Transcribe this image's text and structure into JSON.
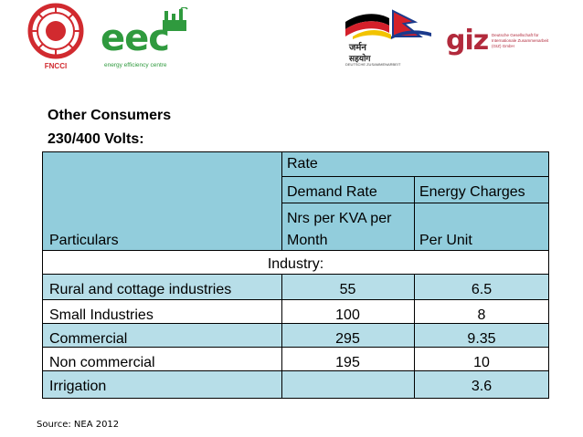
{
  "header": {
    "fncci_logo_label": "FNCCI",
    "eec_logo_text": "eec",
    "eec_logo_subtitle": "energy efficiency centre",
    "german_logo_line1": "जर्मन",
    "german_logo_line2": "सहयोग",
    "german_logo_line3": "DEUTSCHE ZUSAMMENARBEIT",
    "giz_logo_text": "giz",
    "giz_logo_small": "Deutsche Gesellschaft für Internationale Zusammenarbeit (GIZ) GmbH",
    "colors": {
      "eec_green": "#2f9a3e",
      "fncci_red": "#d12a2f",
      "giz_red": "#b22a3c"
    }
  },
  "titles": {
    "line1": "Other Consumers",
    "line2": "230/400 Volts:"
  },
  "table": {
    "header": {
      "particulars": "Particulars",
      "rate": "Rate",
      "demand_rate": "Demand Rate",
      "energy_charges": "Energy Charges",
      "demand_unit_line1": "Nrs  per  KVA  per",
      "demand_unit_line2": "Month",
      "energy_unit": "Per Unit"
    },
    "section": "Industry:",
    "rows": [
      {
        "particulars": "Rural and cottage industries",
        "demand": "55",
        "energy": "6.5"
      },
      {
        "particulars": "Small Industries",
        "demand": "100",
        "energy": "8"
      },
      {
        "particulars": "Commercial",
        "demand": "295",
        "energy": "9.35"
      },
      {
        "particulars": "Non commercial",
        "demand": "195",
        "energy": "10"
      },
      {
        "particulars": "Irrigation",
        "demand": "",
        "energy": "3.6"
      }
    ],
    "colors": {
      "header_bg": "#92cddc",
      "row_bg_light": "#b7dee8"
    }
  },
  "footer": {
    "source": "Source: NEA 2012"
  }
}
